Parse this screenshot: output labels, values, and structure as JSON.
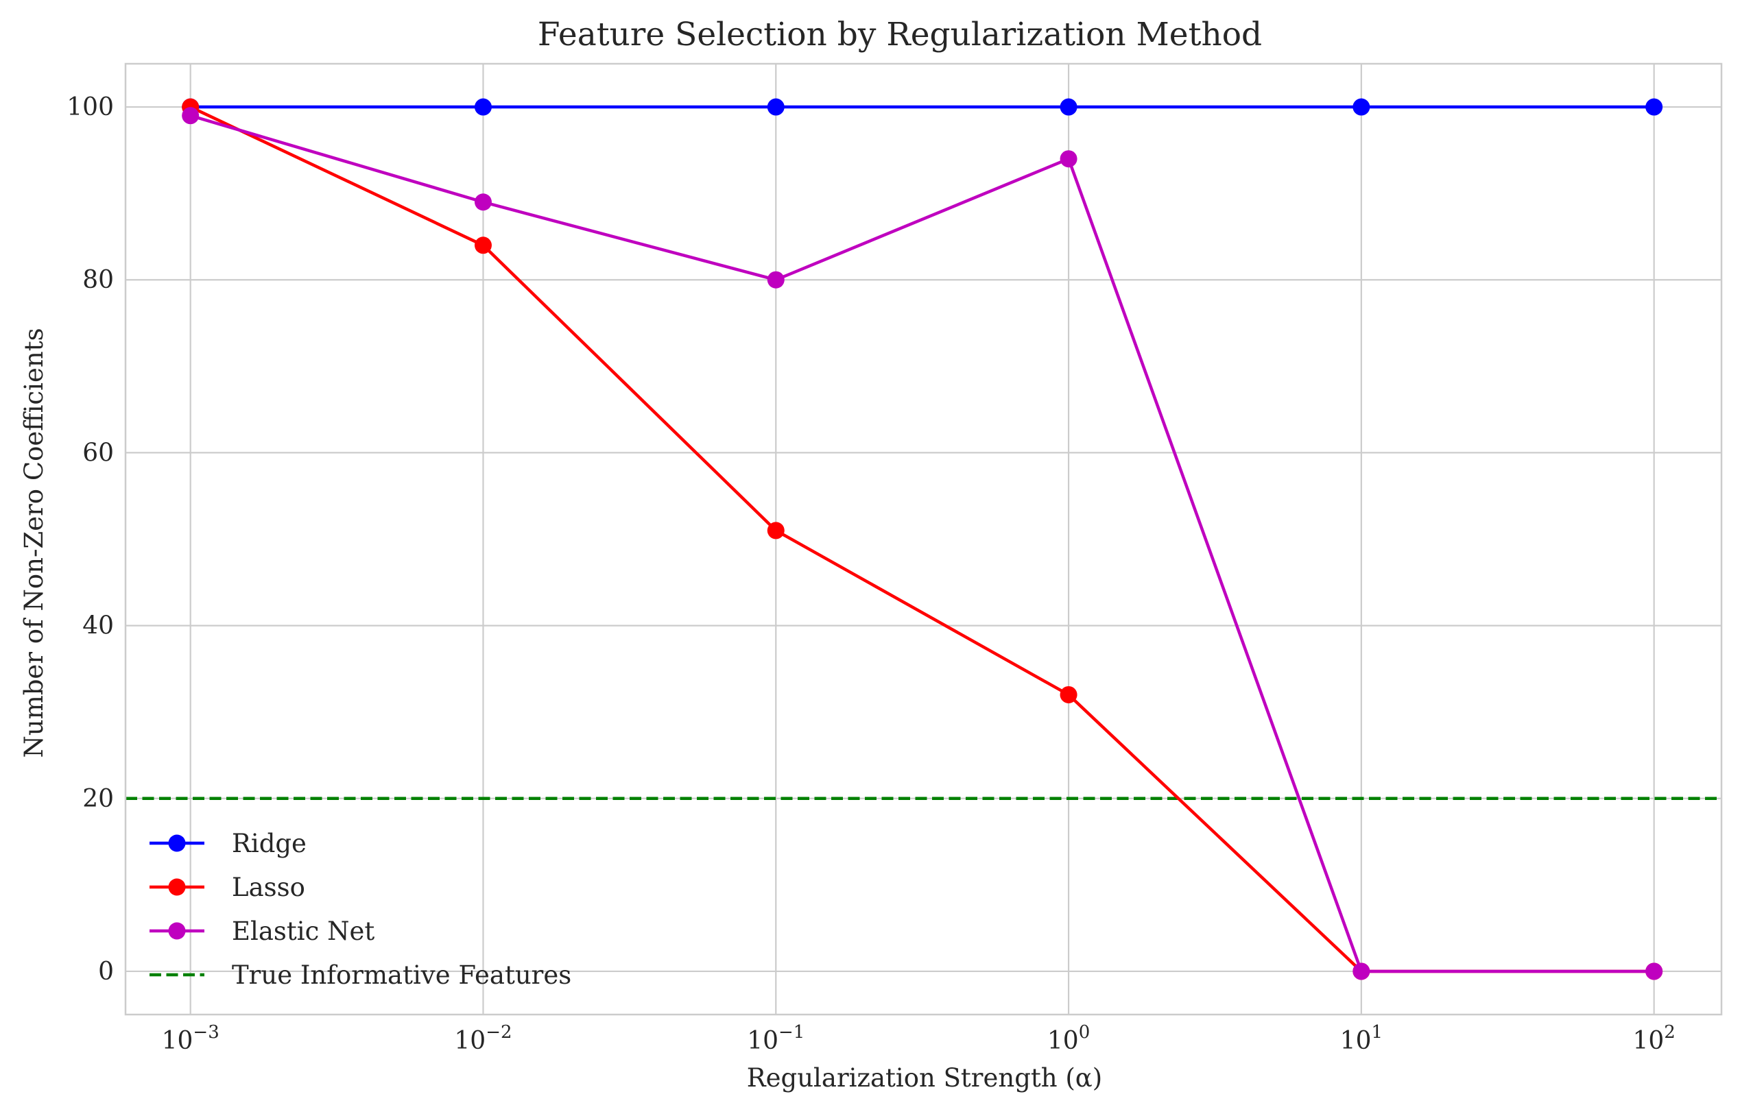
{
  "chart_data": {
    "type": "line",
    "title": "Feature Selection by Regularization Method",
    "xlabel": "Regularization Strength (α)",
    "ylabel": "Number of Non-Zero Coefficients",
    "x_scale": "log",
    "x": [
      0.001,
      0.01,
      0.1,
      1,
      10,
      100
    ],
    "x_tick_labels": [
      {
        "base": "10",
        "exp": "−3"
      },
      {
        "base": "10",
        "exp": "−2"
      },
      {
        "base": "10",
        "exp": "−1"
      },
      {
        "base": "10",
        "exp": "0"
      },
      {
        "base": "10",
        "exp": "1"
      },
      {
        "base": "10",
        "exp": "2"
      }
    ],
    "xlim": [
      0.0006,
      170
    ],
    "ylim": [
      -5,
      105
    ],
    "y_ticks": [
      0,
      20,
      40,
      60,
      80,
      100
    ],
    "grid": true,
    "legend_position": "lower-left",
    "series": [
      {
        "name": "Ridge",
        "color": "#0000ff",
        "marker": "circle",
        "line_style": "solid",
        "values": [
          100,
          100,
          100,
          100,
          100,
          100
        ]
      },
      {
        "name": "Lasso",
        "color": "#ff0000",
        "marker": "circle",
        "line_style": "solid",
        "values": [
          100,
          84,
          51,
          32,
          0,
          0
        ]
      },
      {
        "name": "Elastic Net",
        "color": "#bf00bf",
        "marker": "circle",
        "line_style": "solid",
        "values": [
          99,
          89,
          80,
          94,
          0,
          0
        ]
      }
    ],
    "reference_lines": [
      {
        "name": "True Informative Features",
        "orientation": "horizontal",
        "y": 20,
        "color": "#008000",
        "line_style": "dashed"
      }
    ]
  }
}
